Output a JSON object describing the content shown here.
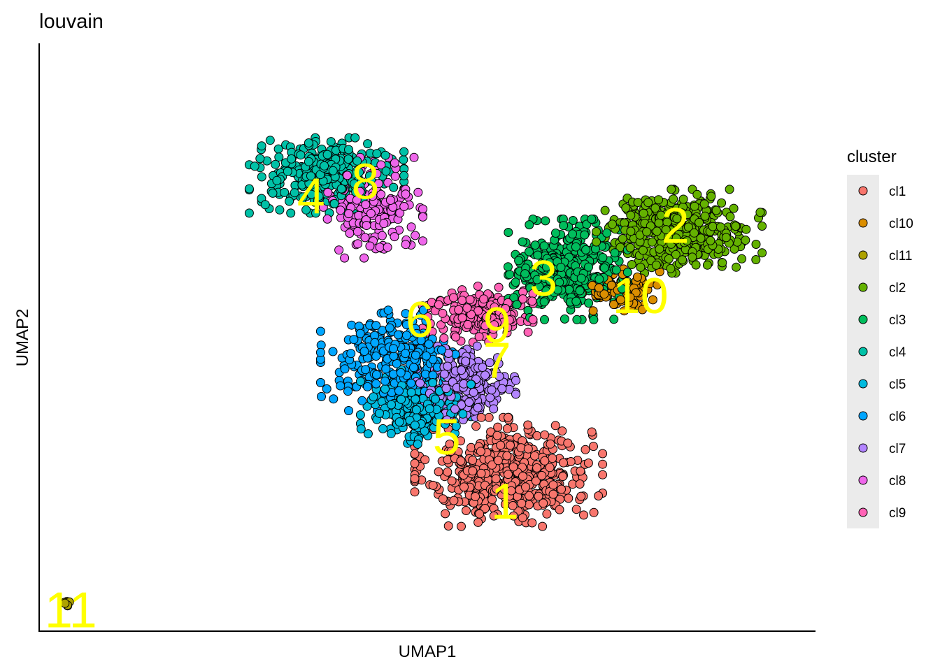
{
  "chart_data": {
    "type": "scatter",
    "title": "louvain",
    "xlabel": "UMAP1",
    "ylabel": "UMAP2",
    "xlim": [
      -9,
      11
    ],
    "ylim": [
      -10,
      10
    ],
    "grid": false,
    "legend": {
      "title": "cluster",
      "placement": "right",
      "entries": [
        {
          "key": "cl1",
          "label": "cl1",
          "color": "#F8766D"
        },
        {
          "key": "cl10",
          "label": "cl10",
          "color": "#DB8E00"
        },
        {
          "key": "cl11",
          "label": "cl11",
          "color": "#AEA200"
        },
        {
          "key": "cl2",
          "label": "cl2",
          "color": "#64B200"
        },
        {
          "key": "cl3",
          "label": "cl3",
          "color": "#00BD5C"
        },
        {
          "key": "cl4",
          "label": "cl4",
          "color": "#00C1A7"
        },
        {
          "key": "cl5",
          "label": "cl5",
          "color": "#00BADE"
        },
        {
          "key": "cl6",
          "label": "cl6",
          "color": "#00A6FF"
        },
        {
          "key": "cl7",
          "label": "cl7",
          "color": "#B385FF"
        },
        {
          "key": "cl8",
          "label": "cl8",
          "color": "#EF67EB"
        },
        {
          "key": "cl9",
          "label": "cl9",
          "color": "#FF63B6"
        }
      ]
    },
    "cluster_labels": [
      {
        "text": "1",
        "x": 3.0,
        "y": -5.6
      },
      {
        "text": "2",
        "x": 7.4,
        "y": 3.8
      },
      {
        "text": "3",
        "x": 4.0,
        "y": 2.0
      },
      {
        "text": "4",
        "x": -2.0,
        "y": 4.8
      },
      {
        "text": "5",
        "x": 1.5,
        "y": -3.4
      },
      {
        "text": "6",
        "x": 0.8,
        "y": 0.6
      },
      {
        "text": "7",
        "x": 2.8,
        "y": -0.8
      },
      {
        "text": "8",
        "x": -0.6,
        "y": 5.3
      },
      {
        "text": "9",
        "x": 2.8,
        "y": 0.4
      },
      {
        "text": "10",
        "x": 6.5,
        "y": 1.4
      },
      {
        "text": "11",
        "x": -8.2,
        "y": -9.3
      }
    ],
    "clusters": [
      {
        "key": "cl1",
        "center": [
          3.1,
          -4.6
        ],
        "spread": [
          1.7,
          1.3
        ],
        "n": 520
      },
      {
        "key": "cl2",
        "center": [
          7.5,
          3.6
        ],
        "spread": [
          1.5,
          1.0
        ],
        "n": 380
      },
      {
        "key": "cl3",
        "center": [
          4.6,
          2.3
        ],
        "spread": [
          1.1,
          1.2
        ],
        "n": 360
      },
      {
        "key": "cl4",
        "center": [
          -1.6,
          5.5
        ],
        "spread": [
          1.4,
          0.9
        ],
        "n": 320
      },
      {
        "key": "cl5",
        "center": [
          0.7,
          -2.4
        ],
        "spread": [
          1.0,
          0.9
        ],
        "n": 260
      },
      {
        "key": "cl6",
        "center": [
          0.1,
          -0.8
        ],
        "spread": [
          1.3,
          1.2
        ],
        "n": 280
      },
      {
        "key": "cl7",
        "center": [
          2.0,
          -1.6
        ],
        "spread": [
          0.9,
          0.9
        ],
        "n": 240
      },
      {
        "key": "cl8",
        "center": [
          -0.4,
          4.4
        ],
        "spread": [
          0.9,
          1.2
        ],
        "n": 170
      },
      {
        "key": "cl9",
        "center": [
          2.3,
          0.8
        ],
        "spread": [
          1.0,
          0.7
        ],
        "n": 200
      },
      {
        "key": "cl10",
        "center": [
          6.0,
          1.6
        ],
        "spread": [
          0.7,
          0.5
        ],
        "n": 90
      },
      {
        "key": "cl11",
        "center": [
          -8.3,
          -9.1
        ],
        "spread": [
          0.08,
          0.06
        ],
        "n": 8
      }
    ]
  }
}
